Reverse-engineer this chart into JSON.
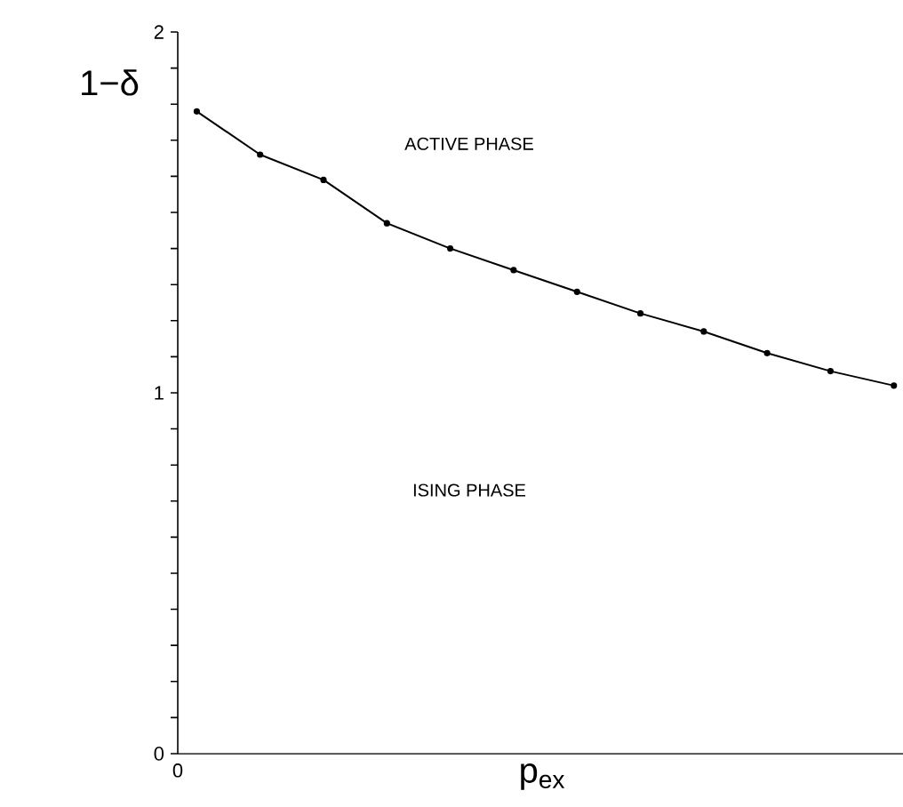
{
  "chart_data": {
    "type": "line",
    "xlabel": "p$_{ex}$",
    "ylabel": "1−δ",
    "categories": [
      null,
      null,
      null,
      null,
      null,
      null,
      null,
      null,
      null,
      null,
      null,
      null
    ],
    "values": [
      1.78,
      1.66,
      1.59,
      1.47,
      1.4,
      1.34,
      1.28,
      1.22,
      1.17,
      1.11,
      1.06,
      1.02
    ],
    "color": "#000000",
    "marker": "circle",
    "line_style": "solid",
    "ylim": [
      0,
      2
    ],
    "yticks": [
      {
        "value": 0,
        "label": "0"
      },
      {
        "value": 0.1,
        "label": null
      },
      {
        "value": 0.2,
        "label": null
      },
      {
        "value": 0.3,
        "label": null
      },
      {
        "value": 0.4,
        "label": null
      },
      {
        "value": 0.5,
        "label": null
      },
      {
        "value": 0.6,
        "label": null
      },
      {
        "value": 0.7,
        "label": null
      },
      {
        "value": 0.8,
        "label": null
      },
      {
        "value": 0.9,
        "label": null
      },
      {
        "value": 1,
        "label": "1"
      },
      {
        "value": 1.1,
        "label": null
      },
      {
        "value": 1.2,
        "label": null
      },
      {
        "value": 1.3,
        "label": null
      },
      {
        "value": 1.4,
        "label": null
      },
      {
        "value": 1.5,
        "label": null
      },
      {
        "value": 1.6,
        "label": null
      },
      {
        "value": 1.7,
        "label": null
      },
      {
        "value": 1.8,
        "label": null
      },
      {
        "value": 1.9,
        "label": null
      },
      {
        "value": 2,
        "label": "2"
      }
    ],
    "annotations": [
      {
        "text": "ACTIVE PHASE"
      },
      {
        "text": "ISING PHASE"
      },
      {
        "text": "0"
      }
    ]
  }
}
